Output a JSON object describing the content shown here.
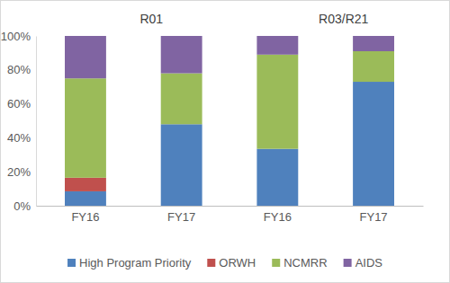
{
  "chart_data": {
    "type": "bar",
    "stacked": true,
    "legend": "bottom",
    "annotations": [
      "R01",
      "R03/R21"
    ],
    "categories": [
      "FY16",
      "FY17",
      "FY16",
      "FY17"
    ],
    "series": [
      {
        "name": "High Program Priority",
        "color": "#4f81bd",
        "values": [
          8.5,
          48,
          33.5,
          73
        ]
      },
      {
        "name": "ORWH",
        "color": "#c0504d",
        "values": [
          8,
          0,
          0,
          0
        ]
      },
      {
        "name": "NCMRR",
        "color": "#9bbb59",
        "values": [
          58.5,
          30,
          55.5,
          18
        ]
      },
      {
        "name": "AIDS",
        "color": "#8064a2",
        "values": [
          25,
          22,
          11,
          9
        ]
      }
    ],
    "ylim": [
      0,
      100
    ],
    "yticks": [
      {
        "value": 0,
        "label": "0%"
      },
      {
        "value": 20,
        "label": "20%"
      },
      {
        "value": 40,
        "label": "40%"
      },
      {
        "value": 60,
        "label": "60%"
      },
      {
        "value": 80,
        "label": "80%"
      },
      {
        "value": 100,
        "label": "100%"
      }
    ]
  }
}
